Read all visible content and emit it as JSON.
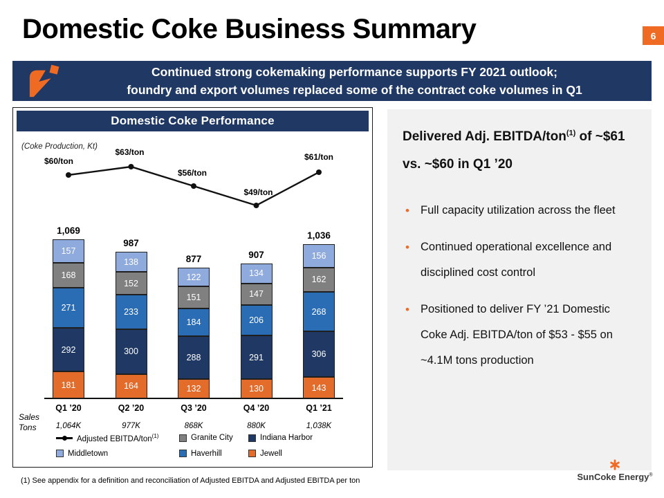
{
  "slide": {
    "title": "Domestic Coke Business Summary",
    "page_number": "6",
    "banner": {
      "line1": "Continued strong cokemaking performance supports FY 2021 outlook;",
      "line2": "foundry and export volumes replaced some of the contract coke volumes in Q1"
    },
    "footnote": "(1)  See appendix for a definition and reconciliation of Adjusted EBITDA and Adjusted EBITDA per ton",
    "logo_text": "SunCoke Energy",
    "logo_reg": "®"
  },
  "colors": {
    "accent_orange": "#EF6A22",
    "navy": "#1F3864",
    "panel_bg": "#F1F1F2"
  },
  "chart_panel": {
    "header": "Domestic Coke Performance",
    "units_label": "(Coke Production, Kt)",
    "sales_row_label": "Sales\nTons"
  },
  "right_panel": {
    "heading_pre": "Delivered Adj. EBITDA/ton",
    "heading_sup": "(1)",
    "heading_post": " of ~$61 vs. ~$60 in Q1 ’20",
    "bullets": [
      "Full capacity utilization across the fleet",
      "Continued operational excellence and disciplined cost control",
      "Positioned to deliver FY ’21 Domestic Coke Adj. EBITDA/ton of $53 - $55 on ~4.1M tons production"
    ]
  },
  "chart_data": {
    "type": "bar",
    "subtype": "stacked-bar-with-line",
    "title": "Domestic Coke Performance",
    "units": "Coke Production, Kt",
    "categories": [
      "Q1 ’20",
      "Q2 ’20",
      "Q3 ’20",
      "Q4 ’20",
      "Q1 ’21"
    ],
    "bar_series": [
      {
        "name": "Jewell",
        "color": "#E36C2B",
        "values": [
          181,
          164,
          132,
          130,
          143
        ]
      },
      {
        "name": "Indiana Harbor",
        "color": "#1F3864",
        "values": [
          292,
          300,
          288,
          291,
          306
        ]
      },
      {
        "name": "Haverhill",
        "color": "#2A6DB5",
        "values": [
          271,
          233,
          184,
          206,
          268
        ]
      },
      {
        "name": "Granite City",
        "color": "#808080",
        "values": [
          168,
          152,
          151,
          147,
          162
        ]
      },
      {
        "name": "Middletown",
        "color": "#8FAADC",
        "values": [
          157,
          138,
          122,
          134,
          156
        ]
      }
    ],
    "stack_order": "bottom-to-top",
    "totals": [
      "1,069",
      "987",
      "877",
      "907",
      "1,036"
    ],
    "line_series": {
      "name": "Adjusted EBITDA/ton",
      "name_sup": "(1)",
      "color": "#111111",
      "values": [
        60,
        63,
        56,
        49,
        61
      ],
      "labels": [
        "$60/ton",
        "$63/ton",
        "$56/ton",
        "$49/ton",
        "$61/ton"
      ]
    },
    "sales_tons": [
      "1,064K",
      "977K",
      "868K",
      "880K",
      "1,038K"
    ],
    "legend": [
      {
        "name": "Adjusted EBITDA/ton",
        "sup": "(1)",
        "marker": "line",
        "color": "#111111"
      },
      {
        "name": "Granite City",
        "marker": "square",
        "color": "#808080"
      },
      {
        "name": "Indiana Harbor",
        "marker": "square",
        "color": "#1F3864"
      },
      {
        "name": "Middletown",
        "marker": "square",
        "color": "#8FAADC"
      },
      {
        "name": "Haverhill",
        "marker": "square",
        "color": "#2A6DB5"
      },
      {
        "name": "Jewell",
        "marker": "square",
        "color": "#E36C2B"
      }
    ]
  }
}
